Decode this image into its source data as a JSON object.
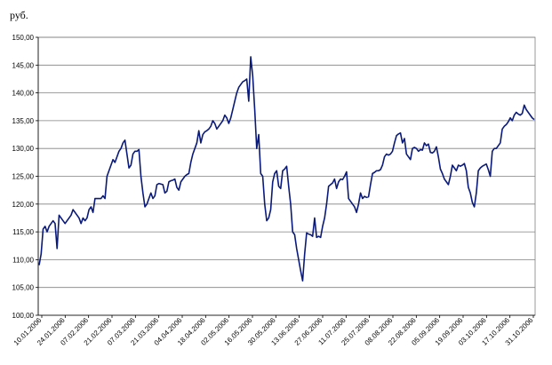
{
  "chart_data": {
    "type": "line",
    "title": "",
    "ylabel": "руб.",
    "xlabel": "",
    "ylim": [
      100,
      150
    ],
    "y_step": 5,
    "grid": true,
    "legend": "none",
    "line_color": "#0a1a7a",
    "yticks": [
      "100,00",
      "105,00",
      "110,00",
      "115,00",
      "120,00",
      "125,00",
      "130,00",
      "135,00",
      "140,00",
      "145,00",
      "150,00"
    ],
    "xticks": [
      "10.01.2006",
      "24.01.2006",
      "07.02.2006",
      "21.02.2006",
      "07.03.2006",
      "21.03.2006",
      "04.04.2006",
      "18.04.2006",
      "02.05.2006",
      "16.05.2006",
      "30.05.2006",
      "13.06.2006",
      "27.06.2006",
      "11.07.2006",
      "25.07.2006",
      "08.08.2006",
      "22.08.2006",
      "05.09.2006",
      "19.09.2006",
      "03.10.2006",
      "17.10.2006",
      "31.10.2006"
    ],
    "series": [
      {
        "values": [
          109,
          111,
          115.5,
          116,
          115,
          116,
          116.5,
          117,
          116.5,
          112,
          118,
          117.5,
          117,
          116.5,
          117,
          117.5,
          118,
          119,
          118.5,
          118,
          117.5,
          116.5,
          117.5,
          117,
          117.5,
          119,
          119.5,
          118.5,
          121,
          121,
          121,
          121,
          121.5,
          121,
          125,
          126,
          127,
          128,
          127.5,
          128.5,
          129.5,
          130,
          131,
          131.5,
          129,
          126.5,
          127,
          129,
          129.5,
          129.5,
          129.8,
          125,
          122,
          119.5,
          120,
          121,
          122,
          121,
          121.5,
          123.5,
          123.7,
          123.6,
          123.5,
          122,
          122.3,
          124,
          124.2,
          124.3,
          124.5,
          123,
          122.5,
          124,
          124.5,
          125,
          125.3,
          125.5,
          127.5,
          129,
          130,
          131,
          133.2,
          131,
          132.5,
          133,
          133.2,
          133.5,
          134,
          135,
          134.5,
          133.5,
          134,
          134.5,
          135,
          136,
          135.5,
          134.5,
          135.5,
          137,
          138.5,
          140,
          141,
          141.5,
          142,
          142.2,
          142.5,
          138.5,
          146.5,
          143,
          137,
          130,
          132.5,
          125.5,
          125,
          120,
          117,
          117.5,
          119,
          124,
          125.5,
          126,
          123.2,
          122.8,
          126,
          126.3,
          126.8,
          123.2,
          120,
          115,
          114.5,
          112,
          110,
          108,
          106.2,
          111,
          114.8,
          114.6,
          114.5,
          114.2,
          117.5,
          114,
          114.2,
          114,
          116,
          117.5,
          120,
          123.2,
          123.5,
          123.8,
          124.5,
          122.8,
          124,
          124.5,
          124.4,
          125,
          125.8,
          121,
          120.5,
          120,
          119.5,
          118.5,
          120,
          122,
          121,
          121.4,
          121.2,
          121.3,
          123.5,
          125.5,
          125.7,
          126,
          126,
          126.2,
          127,
          128.5,
          129,
          128.8,
          129,
          129.5,
          131,
          132.3,
          132.6,
          132.8,
          131,
          131.8,
          129,
          128.5,
          128,
          130,
          130.2,
          130,
          129.5,
          129.8,
          129.7,
          131,
          130.5,
          130.8,
          129.3,
          129.2,
          129.5,
          130.3,
          128.5,
          126.3,
          125.5,
          124.5,
          124,
          123.5,
          125,
          127,
          126.5,
          126,
          127,
          126.8,
          127,
          127.3,
          126,
          123,
          122,
          120.3,
          119.5,
          122,
          126,
          126.5,
          126.8,
          127,
          127.2,
          126.2,
          125,
          129.5,
          130,
          130,
          130.5,
          131,
          133.5,
          134,
          134.3,
          134.8,
          135.5,
          135,
          136,
          136.5,
          136.2,
          136,
          136.3,
          137.8,
          137,
          136.5,
          136,
          135.5,
          135.2
        ]
      }
    ]
  }
}
